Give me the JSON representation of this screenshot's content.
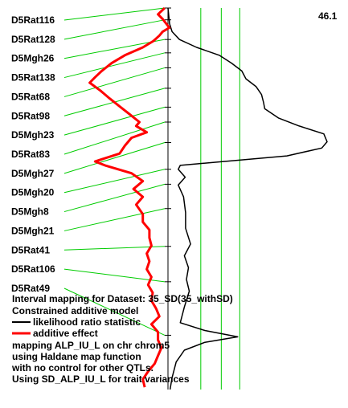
{
  "chart_data": {
    "type": "line",
    "corner_value": "46.1",
    "markers": [
      {
        "name": "D5Rat116",
        "pos": 0
      },
      {
        "name": "D5Rat128",
        "pos": 15
      },
      {
        "name": "D5Mgh26",
        "pos": 40
      },
      {
        "name": "D5Rat138",
        "pos": 57
      },
      {
        "name": "D5Rat68",
        "pos": 76
      },
      {
        "name": "D5Rat98",
        "pos": 102
      },
      {
        "name": "D5Mgh23",
        "pos": 126
      },
      {
        "name": "D5Rat83",
        "pos": 145
      },
      {
        "name": "D5Mgh27",
        "pos": 171
      },
      {
        "name": "D5Mgh20",
        "pos": 205
      },
      {
        "name": "D5Mgh8",
        "pos": 224
      },
      {
        "name": "D5Mgh21",
        "pos": 255
      },
      {
        "name": "D5Rat41",
        "pos": 303
      },
      {
        "name": "D5Rat106",
        "pos": 348
      },
      {
        "name": "D5Rat49",
        "pos": 416
      }
    ],
    "vertical_lines": [
      {
        "kind": "axis",
        "value": 0
      },
      {
        "kind": "threshold",
        "value": 8
      },
      {
        "kind": "threshold",
        "value": 13
      },
      {
        "kind": "threshold",
        "value": 17.5
      }
    ],
    "lrs_xmax": 46.1,
    "series": [
      {
        "name": "likelihood ratio statistic",
        "color": "#000000",
        "points": [
          [
            0,
            0
          ],
          [
            10,
            0.2
          ],
          [
            20,
            0.4
          ],
          [
            30,
            1
          ],
          [
            40,
            2.8
          ],
          [
            50,
            7
          ],
          [
            60,
            12.5
          ],
          [
            70,
            15.5
          ],
          [
            80,
            18
          ],
          [
            90,
            19
          ],
          [
            100,
            21.5
          ],
          [
            110,
            22.8
          ],
          [
            120,
            23.3
          ],
          [
            128,
            23.6
          ],
          [
            140,
            27
          ],
          [
            150,
            32
          ],
          [
            160,
            38
          ],
          [
            170,
            38.8
          ],
          [
            178,
            37.5
          ],
          [
            188,
            29
          ],
          [
            200,
            3
          ],
          [
            205,
            2.5
          ],
          [
            215,
            4.2
          ],
          [
            225,
            2.5
          ],
          [
            240,
            3.8
          ],
          [
            260,
            4.3
          ],
          [
            280,
            4.3
          ],
          [
            300,
            5.5
          ],
          [
            315,
            4
          ],
          [
            330,
            5
          ],
          [
            345,
            4.5
          ],
          [
            360,
            5.2
          ],
          [
            380,
            4
          ],
          [
            400,
            3
          ],
          [
            410,
            9
          ],
          [
            418,
            17
          ],
          [
            425,
            9
          ],
          [
            435,
            4
          ],
          [
            450,
            2
          ],
          [
            470,
            1
          ],
          [
            485,
            0.5
          ]
        ]
      },
      {
        "name": "additive effect",
        "color": "#ff0000",
        "points": [
          [
            0,
            -0.5
          ],
          [
            8,
            -1.5
          ],
          [
            14,
            -0.8
          ],
          [
            25,
            0.2
          ],
          [
            30,
            -0.8
          ],
          [
            35,
            -1.3
          ],
          [
            42,
            -2.2
          ],
          [
            50,
            -3.8
          ],
          [
            60,
            -6.5
          ],
          [
            70,
            -8.5
          ],
          [
            80,
            -10
          ],
          [
            88,
            -11
          ],
          [
            95,
            -11.8
          ],
          [
            105,
            -10.2
          ],
          [
            115,
            -8.8
          ],
          [
            125,
            -7.3
          ],
          [
            135,
            -5.8
          ],
          [
            145,
            -4.3
          ],
          [
            150,
            -4.8
          ],
          [
            158,
            -3.2
          ],
          [
            165,
            -5.5
          ],
          [
            175,
            -6.5
          ],
          [
            185,
            -7.3
          ],
          [
            195,
            -11
          ],
          [
            200,
            -9.5
          ],
          [
            210,
            -5.5
          ],
          [
            220,
            -3.8
          ],
          [
            230,
            -5.2
          ],
          [
            240,
            -3.8
          ],
          [
            250,
            -4.8
          ],
          [
            262,
            -3.8
          ],
          [
            272,
            -3.8
          ],
          [
            282,
            -2.8
          ],
          [
            292,
            -2.8
          ],
          [
            302,
            -2.5
          ],
          [
            312,
            -3.2
          ],
          [
            322,
            -2.8
          ],
          [
            332,
            -3.2
          ],
          [
            342,
            -2.5
          ],
          [
            352,
            -3
          ],
          [
            362,
            -2.3
          ],
          [
            372,
            -2.5
          ],
          [
            382,
            -1.8
          ],
          [
            392,
            -1.3
          ],
          [
            402,
            -2.5
          ],
          [
            412,
            -1.5
          ],
          [
            422,
            -1.5
          ],
          [
            432,
            -1
          ],
          [
            442,
            -1.5
          ],
          [
            452,
            -2
          ],
          [
            462,
            -3
          ],
          [
            472,
            -3.8
          ],
          [
            482,
            -3.5
          ]
        ]
      }
    ]
  },
  "legend": {
    "title": "Interval mapping for Dataset: 35_SD(35_withSD)",
    "model": "Constrained additive model",
    "lrs_label": "likelihood ratio statistic",
    "effect_label": "additive effect",
    "mapping": "mapping ALP_IU_L on chr chrom5",
    "map_function": "using Haldane map function",
    "control": "with no control for other QTLs.",
    "variances": "Using SD_ALP_IU_L for trait variances"
  },
  "colors": {
    "connector": "#00cc00",
    "threshold": "#00cc00",
    "lrs": "#000000",
    "effect": "#ff0000",
    "axis": "#000000"
  }
}
